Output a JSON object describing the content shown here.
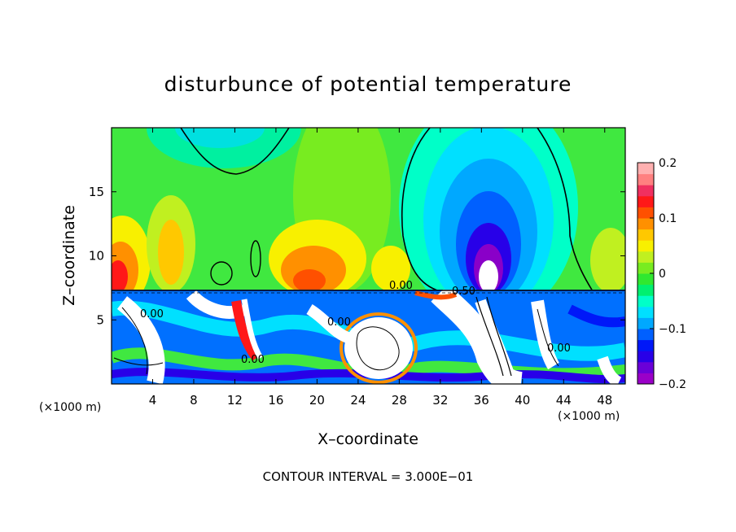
{
  "chart_data": {
    "type": "heatmap",
    "title": "disturbunce of potential temperature",
    "xlabel": "X–coordinate",
    "ylabel": "Z–coordinate",
    "x_unit_left": "(×1000 m)",
    "x_unit_right": "(×1000 m)",
    "xlim": [
      0,
      50
    ],
    "ylim": [
      0,
      20
    ],
    "x_ticks": [
      4,
      8,
      12,
      16,
      20,
      24,
      28,
      32,
      36,
      40,
      44,
      48
    ],
    "y_ticks": [
      5,
      10,
      15
    ],
    "colorbar": {
      "range": [
        -0.2,
        0.2
      ],
      "ticks": [
        {
          "value": 0.2,
          "label": "0.2"
        },
        {
          "value": 0.1,
          "label": "0.1"
        },
        {
          "value": 0.0,
          "label": "0"
        },
        {
          "value": -0.1,
          "label": "−0.1"
        },
        {
          "value": -0.2,
          "label": "−0.2"
        }
      ],
      "colors": [
        "#9a00c8",
        "#6a00d8",
        "#2800e8",
        "#0018f8",
        "#0060ff",
        "#00a8ff",
        "#00e0ff",
        "#00ffc8",
        "#00f070",
        "#30e830",
        "#78ec20",
        "#c0f020",
        "#f8f000",
        "#ffc800",
        "#ff9000",
        "#ff5000",
        "#ff1818",
        "#f03060",
        "#ff8080",
        "#ffb0b0"
      ]
    },
    "contour_labels": [
      "0.00",
      "0.00",
      "0.00",
      "0.00",
      "0.00",
      "0.50"
    ],
    "footer": "CONTOUR INTERVAL = 3.000E−01"
  }
}
